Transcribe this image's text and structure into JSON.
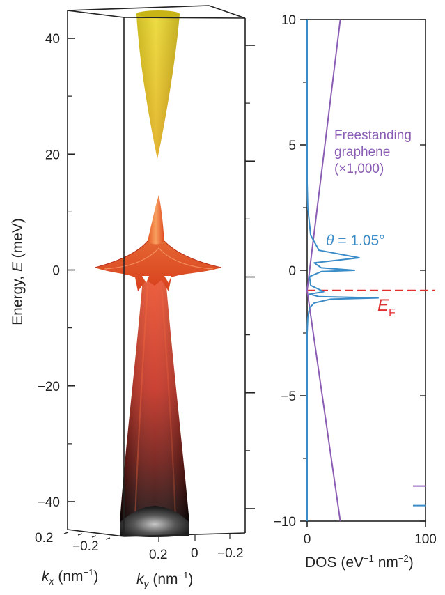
{
  "chart_data": [
    {
      "type": "surface3d",
      "ylabel": "Energy, E (meV)",
      "ylabel_parts": {
        "text": "Energy, ",
        "symbol": "E",
        "unit": " (meV)"
      },
      "ylim": [
        -45,
        45
      ],
      "yticks": [
        -40,
        -20,
        0,
        20,
        40
      ],
      "kx_label": {
        "symbol": "k",
        "sub": "x",
        "unit_pre": " (nm",
        "sup": "−1",
        "unit_post": ")"
      },
      "ky_label": {
        "symbol": "k",
        "sub": "y",
        "unit_pre": " (nm",
        "sup": "−1",
        "unit_post": ")"
      },
      "kx_ticks": [
        "0.2",
        "−0.2"
      ],
      "ky_ticks": [
        "0.2",
        "0",
        "−0.2"
      ],
      "colors": {
        "upper_band": "#d8c020",
        "lower_band": "#d84020",
        "edge": "#222222"
      }
    },
    {
      "type": "line",
      "xlabel": "DOS (eV−1 nm−2)",
      "xlabel_parts": {
        "pre": "DOS (eV",
        "sup1": "−1",
        "mid": " nm",
        "sup2": "−2",
        "post": ")"
      },
      "xlim": [
        0,
        100
      ],
      "ylim": [
        -10,
        10
      ],
      "xticks": [
        0,
        100
      ],
      "yticks": [
        10,
        5,
        0,
        -5,
        -10
      ],
      "ef_level": -0.8,
      "ef_label": {
        "symbol": "E",
        "sub": "F"
      },
      "annotations": {
        "freestanding": [
          "Freestanding",
          "graphene",
          "(×1,000)"
        ],
        "theta": {
          "symbol": "θ",
          "text": " = 1.05°"
        }
      },
      "series": [
        {
          "name": "Freestanding graphene (×1,000)",
          "color": "#8a5cb4",
          "x": [
            28,
            0,
            28
          ],
          "y": [
            -10,
            -0.8,
            10
          ]
        },
        {
          "name": "θ = 1.05°",
          "color": "#3a8cc8",
          "x": [
            0,
            0,
            0.5,
            2,
            6,
            20,
            60,
            10,
            2,
            14,
            3,
            2,
            12,
            40,
            12,
            6,
            44,
            10,
            3,
            0.5,
            0,
            0
          ],
          "y": [
            -10,
            -2.5,
            -1.9,
            -1.5,
            -1.3,
            -1.15,
            -1.1,
            -1.05,
            -0.95,
            -0.85,
            -0.6,
            -0.25,
            -0.05,
            0.0,
            0.1,
            0.3,
            0.5,
            0.8,
            1.4,
            2.5,
            3.5,
            10
          ]
        }
      ],
      "colors": {
        "ef_line": "#e03030",
        "freestanding": "#8a5cb4",
        "twisted": "#3a8cc8"
      }
    }
  ]
}
